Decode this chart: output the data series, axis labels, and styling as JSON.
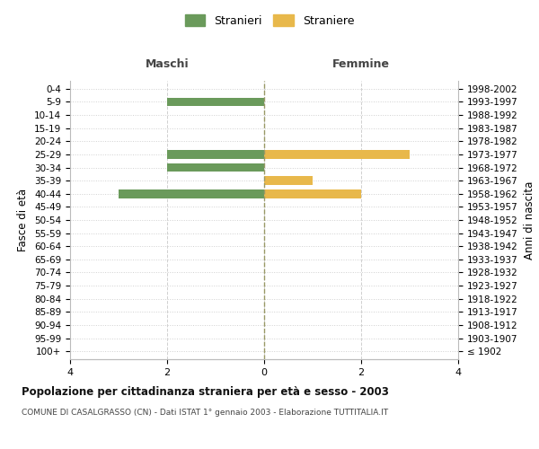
{
  "age_groups": [
    "100+",
    "95-99",
    "90-94",
    "85-89",
    "80-84",
    "75-79",
    "70-74",
    "65-69",
    "60-64",
    "55-59",
    "50-54",
    "45-49",
    "40-44",
    "35-39",
    "30-34",
    "25-29",
    "20-24",
    "15-19",
    "10-14",
    "5-9",
    "0-4"
  ],
  "birth_years": [
    "≤ 1902",
    "1903-1907",
    "1908-1912",
    "1913-1917",
    "1918-1922",
    "1923-1927",
    "1928-1932",
    "1933-1937",
    "1938-1942",
    "1943-1947",
    "1948-1952",
    "1953-1957",
    "1958-1962",
    "1963-1967",
    "1968-1972",
    "1973-1977",
    "1978-1982",
    "1983-1987",
    "1988-1992",
    "1993-1997",
    "1998-2002"
  ],
  "maschi": [
    0,
    0,
    0,
    0,
    0,
    0,
    0,
    0,
    0,
    0,
    0,
    0,
    3,
    0,
    2,
    2,
    0,
    0,
    0,
    2,
    0
  ],
  "femmine": [
    0,
    0,
    0,
    0,
    0,
    0,
    0,
    0,
    0,
    0,
    0,
    0,
    2,
    1,
    0,
    3,
    0,
    0,
    0,
    0,
    0
  ],
  "maschi_color": "#6a9a5b",
  "femmine_color": "#e8b84b",
  "xlim": 4,
  "title": "Popolazione per cittadinanza straniera per età e sesso - 2003",
  "subtitle": "COMUNE DI CASALGRASSO (CN) - Dati ISTAT 1° gennaio 2003 - Elaborazione TUTTITALIA.IT",
  "legend_stranieri": "Stranieri",
  "legend_straniere": "Straniere",
  "maschi_label": "Maschi",
  "femmine_label": "Femmine",
  "ylabel_left": "Fasce di età",
  "ylabel_right": "Anni di nascita",
  "background_color": "#ffffff",
  "grid_color": "#d0d0d0",
  "center_line_color": "#999966"
}
